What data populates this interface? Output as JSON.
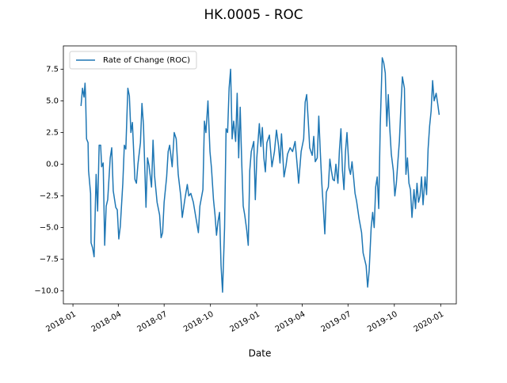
{
  "chart_data": {
    "type": "line",
    "title": "HK.0005 - ROC",
    "xlabel": "Date",
    "x": [
      17548,
      17551,
      17554,
      17556,
      17557,
      17559,
      17562,
      17563,
      17567,
      17568,
      17571,
      17574,
      17578,
      17581,
      17584,
      17587,
      17589,
      17592,
      17595,
      17598,
      17601,
      17606,
      17609,
      17612,
      17617,
      17620,
      17623,
      17626,
      17631,
      17634,
      17637,
      17641,
      17644,
      17647,
      17650,
      17655,
      17658,
      17661,
      17666,
      17669,
      17672,
      17677,
      17680,
      17683,
      17688,
      17691,
      17694,
      17699,
      17704,
      17707,
      17710,
      17713,
      17718,
      17721,
      17724,
      17729,
      17733,
      17737,
      17741,
      17746,
      17749,
      17754,
      17759,
      17762,
      17766,
      17771,
      17776,
      17781,
      17784,
      17790,
      17793,
      17796,
      17800,
      17804,
      17807,
      17811,
      17814,
      17817,
      17820,
      17823,
      17826,
      17829,
      17833,
      17836,
      17839,
      17842,
      17845,
      17848,
      17851,
      17855,
      17858,
      17861,
      17864,
      17867,
      17870,
      17873,
      17877,
      17880,
      17883,
      17886,
      17891,
      17894,
      17897,
      17902,
      17905,
      17908,
      17911,
      17914,
      17917,
      17922,
      17927,
      17932,
      17936,
      17940,
      17943,
      17946,
      17951,
      17955,
      17958,
      17963,
      17968,
      17973,
      17977,
      17980,
      17985,
      17990,
      17993,
      17996,
      17999,
      18002,
      18007,
      18010,
      18013,
      18017,
      18020,
      18023,
      18026,
      18029,
      18032,
      18035,
      18039,
      18042,
      18045,
      18048,
      18051,
      18054,
      18058,
      18061,
      18064,
      18067,
      18070,
      18073,
      18076,
      18080,
      18083,
      18086,
      18089,
      18092,
      18095,
      18100,
      18105,
      18108,
      18111,
      18114,
      18117,
      18120,
      18124,
      18127,
      18130,
      18133,
      18136,
      18139,
      18142,
      18146,
      18149,
      18152,
      18155,
      18158,
      18161,
      18164,
      18168,
      18171,
      18174,
      18177,
      18180,
      18183,
      18186,
      18190,
      18193,
      18196,
      18199,
      18202,
      18205,
      18209,
      18212,
      18215,
      18218,
      18221,
      18224,
      18227,
      18231,
      18234,
      18237,
      18240,
      18243,
      18246,
      18249,
      18253,
      18256,
      18259
    ],
    "series": [
      {
        "name": "Rate of Change (ROC)",
        "color": "#1f77b4",
        "values": [
          4.6,
          6.0,
          5.3,
          6.4,
          5.5,
          2.0,
          1.7,
          -0.5,
          -2.3,
          -6.2,
          -6.6,
          -7.3,
          -0.8,
          -3.7,
          1.5,
          1.5,
          -0.2,
          0.1,
          -6.4,
          -3.3,
          -2.8,
          0.5,
          1.3,
          -2.1,
          -3.4,
          -3.6,
          -5.9,
          -4.9,
          -1.5,
          1.5,
          1.2,
          6.0,
          5.4,
          2.5,
          3.3,
          -1.2,
          -1.5,
          0.0,
          1.7,
          4.8,
          3.1,
          -3.4,
          0.5,
          -0.1,
          -1.8,
          1.9,
          -0.9,
          -3.0,
          -4.0,
          -5.8,
          -5.4,
          -3.0,
          -1.0,
          1.0,
          1.5,
          -0.2,
          2.5,
          2.0,
          -0.8,
          -2.5,
          -4.2,
          -2.8,
          -1.6,
          -2.5,
          -2.3,
          -3.0,
          -4.2,
          -5.4,
          -3.3,
          -2.0,
          3.4,
          2.5,
          5.0,
          1.0,
          -0.3,
          -2.8,
          -4.0,
          -5.6,
          -4.5,
          -3.8,
          -8.0,
          -10.1,
          -5.0,
          2.8,
          2.5,
          6.0,
          7.5,
          2.0,
          3.4,
          1.8,
          5.6,
          0.5,
          4.5,
          0.2,
          -3.3,
          -4.0,
          -5.2,
          -6.4,
          -0.5,
          1.0,
          1.8,
          -2.8,
          0.5,
          3.2,
          1.4,
          2.9,
          0.5,
          -0.6,
          1.7,
          2.3,
          -0.2,
          1.0,
          2.7,
          1.5,
          0.1,
          2.4,
          -1.0,
          -0.1,
          0.8,
          1.3,
          1.0,
          1.8,
          0.0,
          -1.5,
          1.0,
          2.0,
          4.9,
          5.5,
          3.5,
          1.3,
          0.7,
          2.2,
          0.2,
          0.5,
          3.8,
          1.0,
          -1.5,
          -3.4,
          -5.5,
          -2.2,
          -1.8,
          0.4,
          -0.5,
          -1.2,
          -1.3,
          0.0,
          -1.5,
          1.1,
          2.8,
          -0.5,
          -2.0,
          1.0,
          2.5,
          -0.3,
          -0.8,
          0.2,
          -1.0,
          -2.3,
          -2.9,
          -4.3,
          -5.4,
          -7.0,
          -7.5,
          -8.0,
          -9.7,
          -8.4,
          -5.0,
          -3.8,
          -5.0,
          -1.8,
          -1.0,
          -3.5,
          3.0,
          8.4,
          8.0,
          7.2,
          3.0,
          5.5,
          2.8,
          0.8,
          -0.5,
          -2.5,
          -1.5,
          0.2,
          1.8,
          4.5,
          6.9,
          6.0,
          -0.8,
          0.5,
          -1.5,
          -2.0,
          -4.2,
          -2.0,
          -3.5,
          -1.5,
          -3.0,
          -2.5,
          -1.0,
          -3.2,
          -1.0,
          -2.4,
          1.2,
          3.0,
          4.2,
          6.6,
          5.0,
          5.6,
          4.8,
          3.9
        ]
      }
    ],
    "xlim": [
      17513,
      18293
    ],
    "xticks": [
      {
        "value": 17532,
        "label": "2018-01"
      },
      {
        "value": 17622,
        "label": "2018-04"
      },
      {
        "value": 17713,
        "label": "2018-07"
      },
      {
        "value": 17805,
        "label": "2018-10"
      },
      {
        "value": 17897,
        "label": "2019-01"
      },
      {
        "value": 17987,
        "label": "2019-04"
      },
      {
        "value": 18078,
        "label": "2019-07"
      },
      {
        "value": 18170,
        "label": "2019-10"
      },
      {
        "value": 18262,
        "label": "2020-01"
      }
    ],
    "ylim": [
      -11.02,
      9.34
    ],
    "yticks": [
      {
        "value": -10,
        "label": "−10.0"
      },
      {
        "value": -7.5,
        "label": "−7.5"
      },
      {
        "value": -5,
        "label": "−5.0"
      },
      {
        "value": -2.5,
        "label": "−2.5"
      },
      {
        "value": 0,
        "label": "0.0"
      },
      {
        "value": 2.5,
        "label": "2.5"
      },
      {
        "value": 5,
        "label": "5.0"
      },
      {
        "value": 7.5,
        "label": "7.5"
      }
    ],
    "grid": false,
    "legend": "upper left"
  }
}
